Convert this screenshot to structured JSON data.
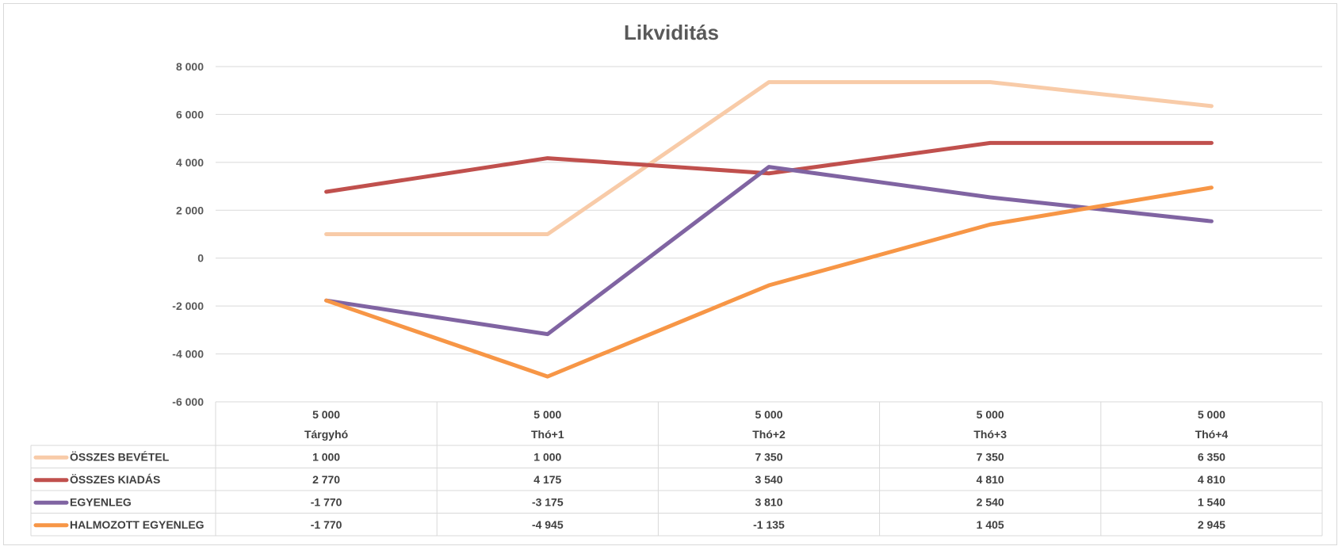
{
  "chart_data": {
    "type": "line",
    "title": "Likviditás",
    "categories": [
      "Tárgyhó",
      "Thó+1",
      "Thó+2",
      "Thó+3",
      "Thó+4"
    ],
    "category_headers": [
      "5 000",
      "5 000",
      "5 000",
      "5 000",
      "5 000"
    ],
    "ylim": [
      -6000,
      8000
    ],
    "yticks": [
      8000,
      6000,
      4000,
      2000,
      0,
      -2000,
      -4000,
      -6000
    ],
    "ytick_labels": [
      "8 000",
      "6 000",
      "4 000",
      "2 000",
      "0",
      "-2 000",
      "-4 000",
      "-6 000"
    ],
    "grid": true,
    "legend": "data-table",
    "series": [
      {
        "name": "ÖSSZES BEVÉTEL",
        "color": "#f8cba8",
        "values": [
          1000,
          1000,
          7350,
          7350,
          6350
        ],
        "labels": [
          "1 000",
          "1 000",
          "7 350",
          "7 350",
          "6 350"
        ]
      },
      {
        "name": "ÖSSZES KIADÁS",
        "color": "#c0504d",
        "values": [
          2770,
          4175,
          3540,
          4810,
          4810
        ],
        "labels": [
          "2 770",
          "4 175",
          "3 540",
          "4 810",
          "4 810"
        ]
      },
      {
        "name": "EGYENLEG",
        "color": "#8064a2",
        "values": [
          -1770,
          -3175,
          3810,
          2540,
          1540
        ],
        "labels": [
          "-1 770",
          "-3 175",
          "3 810",
          "2 540",
          "1 540"
        ]
      },
      {
        "name": "HALMOZOTT EGYENLEG",
        "color": "#f79646",
        "values": [
          -1770,
          -4945,
          -1135,
          1405,
          2945
        ],
        "labels": [
          "-1 770",
          "-4 945",
          "-1 135",
          "1 405",
          "2 945"
        ]
      }
    ]
  }
}
